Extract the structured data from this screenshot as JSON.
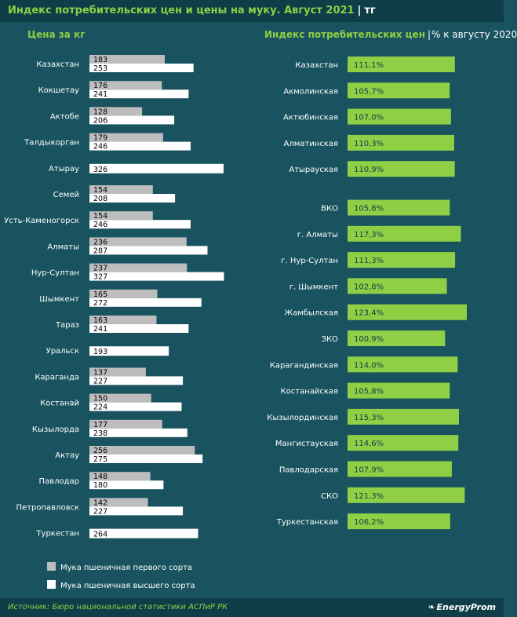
{
  "header": {
    "title": "Индекс потребительских цен и цены на муку. Август 2021",
    "separator": "|",
    "unit": "тг"
  },
  "columns": {
    "left_title": "Цена за кг",
    "right_title": "Индекс потребительских цен",
    "right_separator": "|",
    "right_subtitle": "% к августу 2020"
  },
  "colors": {
    "background": "#18535f",
    "header_bg": "#0f3e48",
    "accent_green": "#8fcf45",
    "series_first_grade": "#bdbdbd",
    "series_top_grade": "#ffffff",
    "cpi_bar": "#8fcf45"
  },
  "chart_data": [
    {
      "type": "bar",
      "orientation": "horizontal",
      "title": "Цена за кг",
      "categories": [
        "Казахстан",
        "Кокшетау",
        "Актобе",
        "Талдыкорган",
        "Атырау",
        "Семей",
        "Усть-Каменогорск",
        "Алматы",
        "Нур-Султан",
        "Шымкент",
        "Тараз",
        "Уральск",
        "Караганда",
        "Костанай",
        "Кызылорда",
        "Актау",
        "Павлодар",
        "Петропавловск",
        "Туркестан"
      ],
      "series": [
        {
          "name": "Мука пшеничная первого сорта",
          "values": [
            183,
            176,
            128,
            179,
            null,
            154,
            154,
            236,
            237,
            165,
            163,
            null,
            137,
            150,
            177,
            256,
            148,
            142,
            null
          ]
        },
        {
          "name": "Мука пшеничная высшего сорта",
          "values": [
            253,
            241,
            206,
            246,
            326,
            208,
            246,
            287,
            327,
            272,
            241,
            193,
            227,
            224,
            238,
            275,
            180,
            227,
            264
          ]
        }
      ],
      "xlim": [
        0,
        330
      ],
      "legend": "bottom-left"
    },
    {
      "type": "bar",
      "orientation": "horizontal",
      "title": "Индекс потребительских цен",
      "subtitle": "% к августу 2020",
      "categories": [
        "Казахстан",
        "Акмолинская",
        "Актюбинская",
        "Алматинская",
        "Атырауская",
        "ВКО",
        "г. Алматы",
        "г. Нур-Султан",
        "г. Шымкент",
        "Жамбылская",
        "ЗКО",
        "Карагандинская",
        "Костанайская",
        "Кызылординская",
        "Мангистауская",
        "Павлодарская",
        "СКО",
        "Туркестанская"
      ],
      "values": [
        111.1,
        105.7,
        107.0,
        110.3,
        110.9,
        105.8,
        117.3,
        111.3,
        102.8,
        123.4,
        100.9,
        114.0,
        105.8,
        115.3,
        114.6,
        107.9,
        121.3,
        106.2
      ],
      "labels": [
        "111,1%",
        "105,7%",
        "107,0%",
        "110,3%",
        "110,9%",
        "105,8%",
        "117,3%",
        "111,3%",
        "102,8%",
        "123,4%",
        "100,9%",
        "114,0%",
        "105,8%",
        "115,3%",
        "114,6%",
        "107,9%",
        "121,3%",
        "106,2%"
      ]
    }
  ],
  "legend": [
    {
      "label": "Мука пшеничная первого сорта",
      "color": "#bdbdbd"
    },
    {
      "label": "Мука пшеничная высшего сорта",
      "color": "#ffffff"
    }
  ],
  "footer": {
    "source": "Источник: Бюро национальной статистики АСПиР РК",
    "brand": "EnergyProm"
  }
}
